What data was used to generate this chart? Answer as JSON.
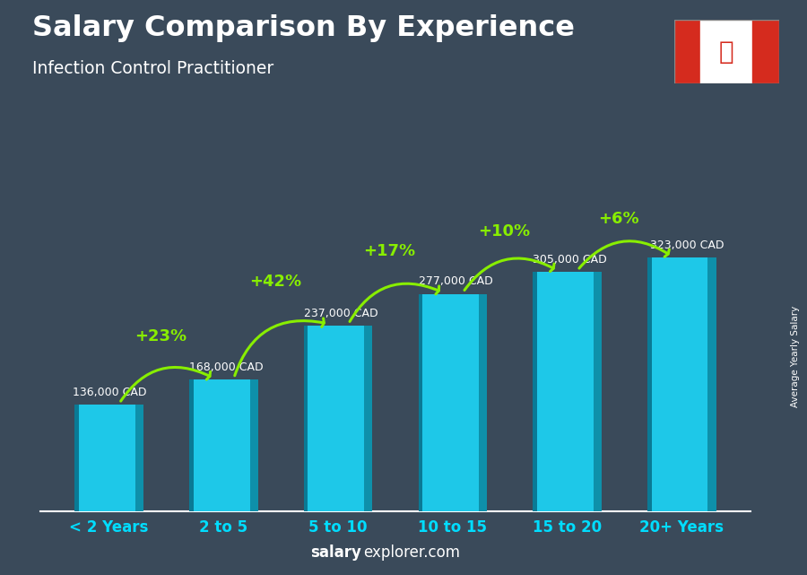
{
  "title": "Salary Comparison By Experience",
  "subtitle": "Infection Control Practitioner",
  "ylabel": "Average Yearly Salary",
  "categories": [
    "< 2 Years",
    "2 to 5",
    "5 to 10",
    "10 to 15",
    "15 to 20",
    "20+ Years"
  ],
  "values": [
    136000,
    168000,
    237000,
    277000,
    305000,
    323000
  ],
  "bar_color_main": "#1ec8e8",
  "bar_color_right": "#0e90aa",
  "bar_color_front": "#0a7a95",
  "salaries": [
    "136,000 CAD",
    "168,000 CAD",
    "237,000 CAD",
    "277,000 CAD",
    "305,000 CAD",
    "323,000 CAD"
  ],
  "pct_changes": [
    "+23%",
    "+42%",
    "+17%",
    "+10%",
    "+6%"
  ],
  "pct_color": "#88ee00",
  "salary_color": "#ffffff",
  "title_color": "#ffffff",
  "subtitle_color": "#ffffff",
  "footer_salary_color": "#ffffff",
  "bg_color": "#3a4a5a",
  "bottom_line_color": "#ffffff",
  "ylabel_color": "#ffffff",
  "xtick_color": "#00ddff"
}
